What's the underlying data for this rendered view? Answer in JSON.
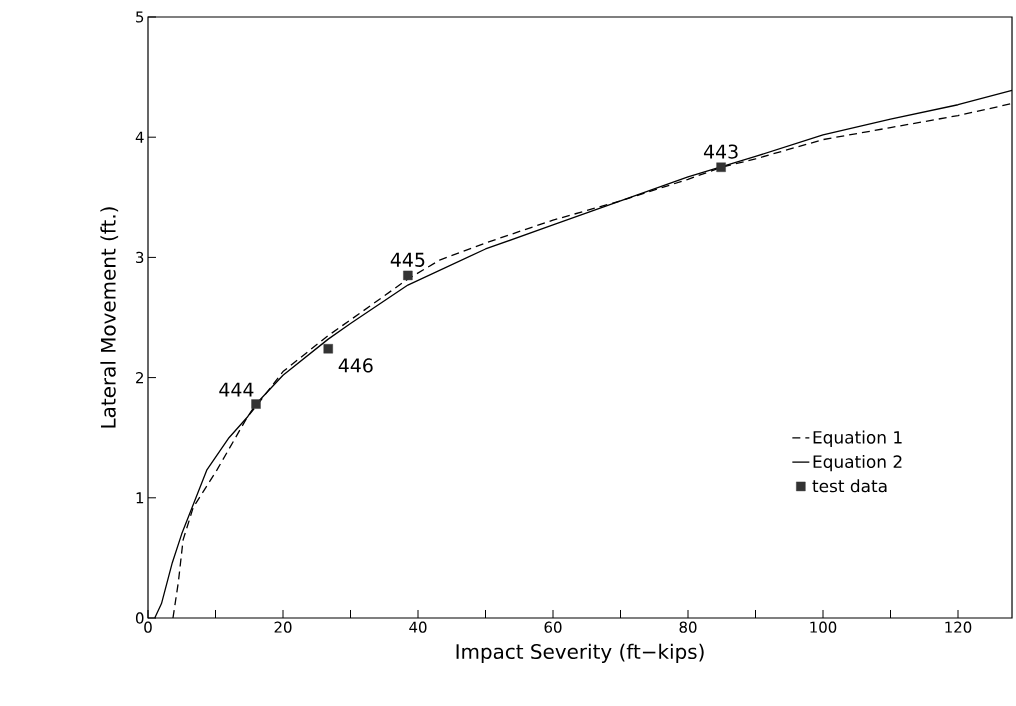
{
  "chart_data": {
    "type": "line",
    "xlabel": "Impact Severity (ft−kips)",
    "ylabel": "Lateral Movement (ft.)",
    "xlim": [
      0,
      128
    ],
    "ylim": [
      0,
      5
    ],
    "xticks": [
      0,
      {
        "value": 10,
        "label": null
      },
      20,
      {
        "value": 30,
        "label": null
      },
      40,
      {
        "value": 50,
        "label": null
      },
      60,
      {
        "value": 70,
        "label": null
      },
      80,
      {
        "value": 90,
        "label": null
      },
      100,
      {
        "value": 110,
        "label": null
      },
      120
    ],
    "yticks": [
      0,
      1,
      2,
      3,
      4,
      5
    ],
    "grid": false,
    "legend": "bottom right",
    "series": [
      {
        "name": "Equation 1",
        "color": "#000000",
        "line_style": "dashed",
        "marker": "none",
        "x": [
          3.7,
          4.5,
          5.2,
          6.7,
          10.2,
          14.7,
          16,
          20,
          26.7,
          30,
          38.5,
          43.3,
          50,
          60,
          70,
          80,
          85,
          90,
          100,
          110,
          120,
          128
        ],
        "values": [
          0,
          0.3,
          0.65,
          0.92,
          1.23,
          1.67,
          1.76,
          2.05,
          2.35,
          2.48,
          2.82,
          2.98,
          3.12,
          3.31,
          3.47,
          3.65,
          3.75,
          3.82,
          3.98,
          4.08,
          4.18,
          4.28
        ]
      },
      {
        "name": "Equation 2",
        "color": "#000000",
        "line_style": "solid",
        "marker": "none",
        "x": [
          1,
          2,
          3.6,
          5,
          8.7,
          12,
          14.7,
          16,
          20,
          26.7,
          30,
          38.5,
          50,
          60,
          70,
          80,
          90,
          100,
          110,
          120,
          128
        ],
        "values": [
          0,
          0.12,
          0.46,
          0.7,
          1.23,
          1.5,
          1.67,
          1.78,
          2.02,
          2.32,
          2.45,
          2.77,
          3.07,
          3.27,
          3.47,
          3.67,
          3.84,
          4.02,
          4.15,
          4.27,
          4.39
        ]
      },
      {
        "name": "test data",
        "type": "scatter",
        "color": "#333333",
        "marker": "square",
        "x": [
          16,
          26.7,
          38.5,
          84.9
        ],
        "values": [
          1.78,
          2.24,
          2.85,
          3.75
        ]
      }
    ],
    "annotations": [
      {
        "text": "444",
        "x": 16,
        "y": 1.78
      },
      {
        "text": "446",
        "x": 26.7,
        "y": 2.24
      },
      {
        "text": "445",
        "x": 38.5,
        "y": 2.85
      },
      {
        "text": "443",
        "x": 84.9,
        "y": 3.75
      }
    ]
  }
}
